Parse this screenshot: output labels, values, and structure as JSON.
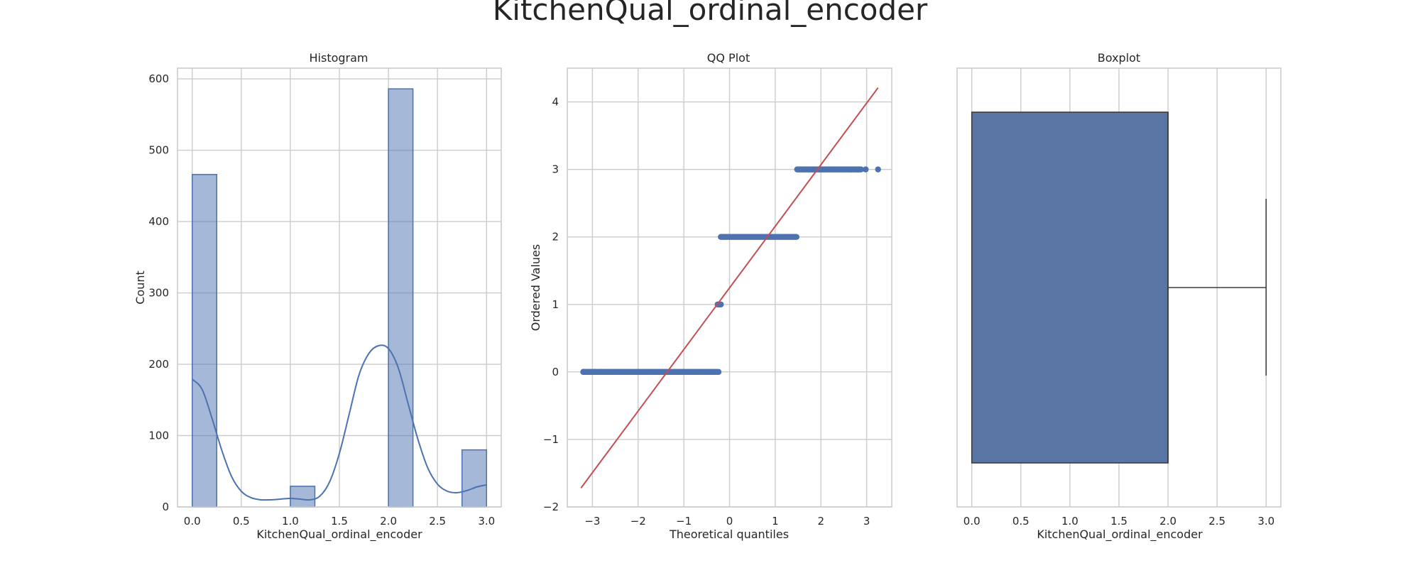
{
  "figure_title": "KitchenQual_ordinal_encoder",
  "colors": {
    "blue": "#4c72b0",
    "box_fill": "#5975a4",
    "red": "#c44e52",
    "grid": "#cccccc"
  },
  "chart_data": [
    {
      "type": "bar",
      "title": "Histogram",
      "xlabel": "KitchenQual_ordinal_encoder",
      "ylabel": "Count",
      "xlim": [
        -0.15,
        3.15
      ],
      "ylim": [
        0,
        615
      ],
      "xticks": [
        0.0,
        0.5,
        1.0,
        1.5,
        2.0,
        2.5,
        3.0
      ],
      "xtick_labels": [
        "0.0",
        "0.5",
        "1.0",
        "1.5",
        "2.0",
        "2.5",
        "3.0"
      ],
      "yticks": [
        0,
        100,
        200,
        300,
        400,
        500,
        600
      ],
      "ytick_labels": [
        "0",
        "100",
        "200",
        "300",
        "400",
        "500",
        "600"
      ],
      "bins": [
        {
          "x0": 0.0,
          "x1": 0.25,
          "count": 466
        },
        {
          "x0": 1.0,
          "x1": 1.25,
          "count": 29
        },
        {
          "x0": 2.0,
          "x1": 2.25,
          "count": 586
        },
        {
          "x0": 2.75,
          "x1": 3.0,
          "count": 80
        }
      ],
      "kde": {
        "x": [
          0.0,
          0.1,
          0.2,
          0.3,
          0.4,
          0.5,
          0.6,
          0.7,
          0.8,
          0.9,
          1.0,
          1.1,
          1.2,
          1.3,
          1.4,
          1.5,
          1.6,
          1.7,
          1.8,
          1.9,
          2.0,
          2.1,
          2.2,
          2.3,
          2.4,
          2.5,
          2.6,
          2.7,
          2.8,
          2.9,
          3.0
        ],
        "y": [
          179,
          165,
          125,
          80,
          43,
          22,
          13,
          10,
          10,
          11,
          12,
          11,
          10,
          15,
          35,
          75,
          130,
          185,
          215,
          226,
          222,
          195,
          145,
          95,
          55,
          32,
          22,
          20,
          23,
          28,
          31
        ]
      },
      "grid": true
    },
    {
      "type": "scatter",
      "title": "QQ Plot",
      "xlabel": "Theoretical quantiles",
      "ylabel": "Ordered Values",
      "xlim": [
        -3.55,
        3.55
      ],
      "ylim": [
        -2.0,
        4.5
      ],
      "xticks": [
        -3,
        -2,
        -1,
        0,
        1,
        2,
        3
      ],
      "xtick_labels": [
        "−3",
        "−2",
        "−1",
        "0",
        "1",
        "2",
        "3"
      ],
      "yticks": [
        -2,
        -1,
        0,
        1,
        2,
        3,
        4
      ],
      "ytick_labels": [
        "−2",
        "−1",
        "0",
        "1",
        "2",
        "3",
        "4"
      ],
      "series": [
        {
          "values_points": [
            {
              "level": 0,
              "x_min": -3.2,
              "x_max": -0.23,
              "extra_x": [
                -3.2,
                -2.95,
                -2.8,
                -2.7,
                -2.62
              ]
            },
            {
              "level": 1,
              "x_min": -0.26,
              "x_max": -0.19,
              "extra_x": []
            },
            {
              "level": 2,
              "x_min": -0.19,
              "x_max": 1.48,
              "extra_x": []
            },
            {
              "level": 3,
              "x_min": 1.48,
              "x_max": 2.9,
              "extra_x": [
                2.65,
                2.8,
                2.98,
                3.25
              ]
            }
          ]
        }
      ],
      "fit_line": {
        "x": [
          -3.25,
          3.25
        ],
        "y": [
          -1.72,
          4.21
        ]
      },
      "grid": true
    },
    {
      "type": "box",
      "title": "Boxplot",
      "xlabel": "KitchenQual_ordinal_encoder",
      "xlim": [
        -0.15,
        3.15
      ],
      "xticks": [
        0.0,
        0.5,
        1.0,
        1.5,
        2.0,
        2.5,
        3.0
      ],
      "xtick_labels": [
        "0.0",
        "0.5",
        "1.0",
        "1.5",
        "2.0",
        "2.5",
        "3.0"
      ],
      "q1": 0.0,
      "median": 2.0,
      "q3": 2.0,
      "whisker_low": 0.0,
      "whisker_high": 3.0,
      "grid": true
    }
  ]
}
